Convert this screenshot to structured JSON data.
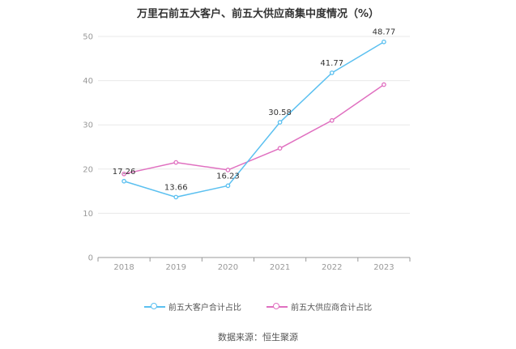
{
  "title": "万里石前五大客户、前五大供应商集中度情况（%）",
  "source": "数据来源：恒生聚源",
  "colors": {
    "customer": "#5bc0f0",
    "supplier": "#e070c0",
    "grid": "#e8e8e8",
    "axis": "#999999"
  },
  "chart_data": {
    "type": "line",
    "categories": [
      "2018",
      "2019",
      "2020",
      "2021",
      "2022",
      "2023"
    ],
    "ylim": [
      0,
      50
    ],
    "yticks": [
      0,
      10,
      20,
      30,
      40,
      50
    ],
    "grid": true,
    "legend_position": "bottom",
    "series": [
      {
        "name": "前五大客户合计占比",
        "values": [
          17.26,
          13.66,
          16.23,
          30.58,
          41.77,
          48.77
        ],
        "labels": [
          "17.26",
          "13.66",
          "16.23",
          "30.58",
          "41.77",
          "48.77"
        ]
      },
      {
        "name": "前五大供应商合计占比",
        "values": [
          18.9,
          21.5,
          19.8,
          24.7,
          31.0,
          39.1
        ]
      }
    ]
  }
}
